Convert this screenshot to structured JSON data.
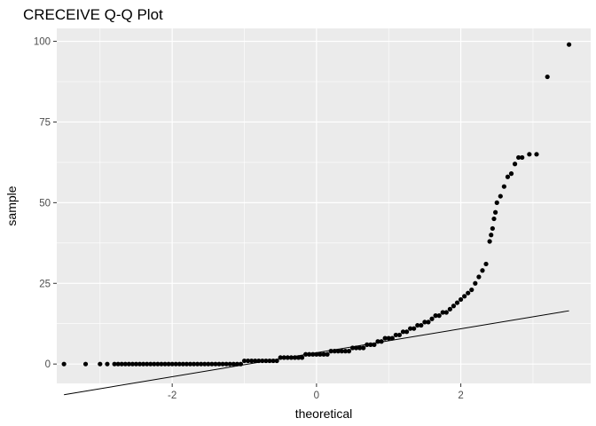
{
  "chart_data": {
    "type": "scatter",
    "title": "CRECEIVE Q-Q Plot",
    "xlabel": "theoretical",
    "ylabel": "sample",
    "xlim": [
      -3.6,
      3.8
    ],
    "ylim": [
      -6,
      104
    ],
    "x_ticks": [
      -2,
      0,
      2
    ],
    "x_tick_labels": [
      "-2",
      "0",
      "2"
    ],
    "y_ticks": [
      0,
      25,
      50,
      75,
      100
    ],
    "y_tick_labels": [
      "0",
      "25",
      "50",
      "75",
      "100"
    ],
    "grid": true,
    "background": "#ebebeb",
    "grid_color": "#ffffff",
    "point_color": "#000000",
    "reference_line": {
      "x": [
        -3.5,
        3.5
      ],
      "y": [
        -9.5,
        16.5
      ],
      "color": "#000000"
    },
    "points": [
      [
        -3.5,
        0
      ],
      [
        -3.2,
        0
      ],
      [
        -3.0,
        0
      ],
      [
        -2.9,
        0
      ],
      [
        -2.8,
        0
      ],
      [
        -2.75,
        0
      ],
      [
        -2.7,
        0
      ],
      [
        -2.65,
        0
      ],
      [
        -2.6,
        0
      ],
      [
        -2.55,
        0
      ],
      [
        -2.5,
        0
      ],
      [
        -2.45,
        0
      ],
      [
        -2.4,
        0
      ],
      [
        -2.35,
        0
      ],
      [
        -2.3,
        0
      ],
      [
        -2.25,
        0
      ],
      [
        -2.2,
        0
      ],
      [
        -2.15,
        0
      ],
      [
        -2.1,
        0
      ],
      [
        -2.05,
        0
      ],
      [
        -2.0,
        0
      ],
      [
        -1.95,
        0
      ],
      [
        -1.9,
        0
      ],
      [
        -1.85,
        0
      ],
      [
        -1.8,
        0
      ],
      [
        -1.75,
        0
      ],
      [
        -1.7,
        0
      ],
      [
        -1.65,
        0
      ],
      [
        -1.6,
        0
      ],
      [
        -1.55,
        0
      ],
      [
        -1.5,
        0
      ],
      [
        -1.45,
        0
      ],
      [
        -1.4,
        0
      ],
      [
        -1.35,
        0
      ],
      [
        -1.3,
        0
      ],
      [
        -1.25,
        0
      ],
      [
        -1.2,
        0
      ],
      [
        -1.15,
        0
      ],
      [
        -1.1,
        0
      ],
      [
        -1.05,
        0
      ],
      [
        -1.0,
        1
      ],
      [
        -0.95,
        1
      ],
      [
        -0.9,
        1
      ],
      [
        -0.85,
        1
      ],
      [
        -0.8,
        1
      ],
      [
        -0.75,
        1
      ],
      [
        -0.7,
        1
      ],
      [
        -0.65,
        1
      ],
      [
        -0.6,
        1
      ],
      [
        -0.55,
        1
      ],
      [
        -0.5,
        2
      ],
      [
        -0.45,
        2
      ],
      [
        -0.4,
        2
      ],
      [
        -0.35,
        2
      ],
      [
        -0.3,
        2
      ],
      [
        -0.25,
        2
      ],
      [
        -0.2,
        2
      ],
      [
        -0.15,
        3
      ],
      [
        -0.1,
        3
      ],
      [
        -0.05,
        3
      ],
      [
        0.0,
        3
      ],
      [
        0.05,
        3
      ],
      [
        0.1,
        3
      ],
      [
        0.15,
        3
      ],
      [
        0.2,
        4
      ],
      [
        0.25,
        4
      ],
      [
        0.3,
        4
      ],
      [
        0.35,
        4
      ],
      [
        0.4,
        4
      ],
      [
        0.45,
        4
      ],
      [
        0.5,
        5
      ],
      [
        0.55,
        5
      ],
      [
        0.6,
        5
      ],
      [
        0.65,
        5
      ],
      [
        0.7,
        6
      ],
      [
        0.75,
        6
      ],
      [
        0.8,
        6
      ],
      [
        0.85,
        7
      ],
      [
        0.9,
        7
      ],
      [
        0.95,
        8
      ],
      [
        1.0,
        8
      ],
      [
        1.05,
        8
      ],
      [
        1.1,
        9
      ],
      [
        1.15,
        9
      ],
      [
        1.2,
        10
      ],
      [
        1.25,
        10
      ],
      [
        1.3,
        11
      ],
      [
        1.35,
        11
      ],
      [
        1.4,
        12
      ],
      [
        1.45,
        12
      ],
      [
        1.5,
        13
      ],
      [
        1.55,
        13
      ],
      [
        1.6,
        14
      ],
      [
        1.65,
        15
      ],
      [
        1.7,
        15
      ],
      [
        1.75,
        16
      ],
      [
        1.8,
        16
      ],
      [
        1.85,
        17
      ],
      [
        1.9,
        18
      ],
      [
        1.95,
        19
      ],
      [
        2.0,
        20
      ],
      [
        2.05,
        21
      ],
      [
        2.1,
        22
      ],
      [
        2.15,
        23
      ],
      [
        2.2,
        25
      ],
      [
        2.25,
        27
      ],
      [
        2.3,
        29
      ],
      [
        2.35,
        31
      ],
      [
        2.4,
        38
      ],
      [
        2.42,
        40
      ],
      [
        2.44,
        42
      ],
      [
        2.46,
        45
      ],
      [
        2.48,
        47
      ],
      [
        2.5,
        50
      ],
      [
        2.55,
        52
      ],
      [
        2.6,
        55
      ],
      [
        2.65,
        58
      ],
      [
        2.7,
        59
      ],
      [
        2.75,
        62
      ],
      [
        2.8,
        64
      ],
      [
        2.85,
        64
      ],
      [
        2.95,
        65
      ],
      [
        3.05,
        65
      ],
      [
        3.2,
        89
      ],
      [
        3.5,
        99
      ]
    ]
  }
}
